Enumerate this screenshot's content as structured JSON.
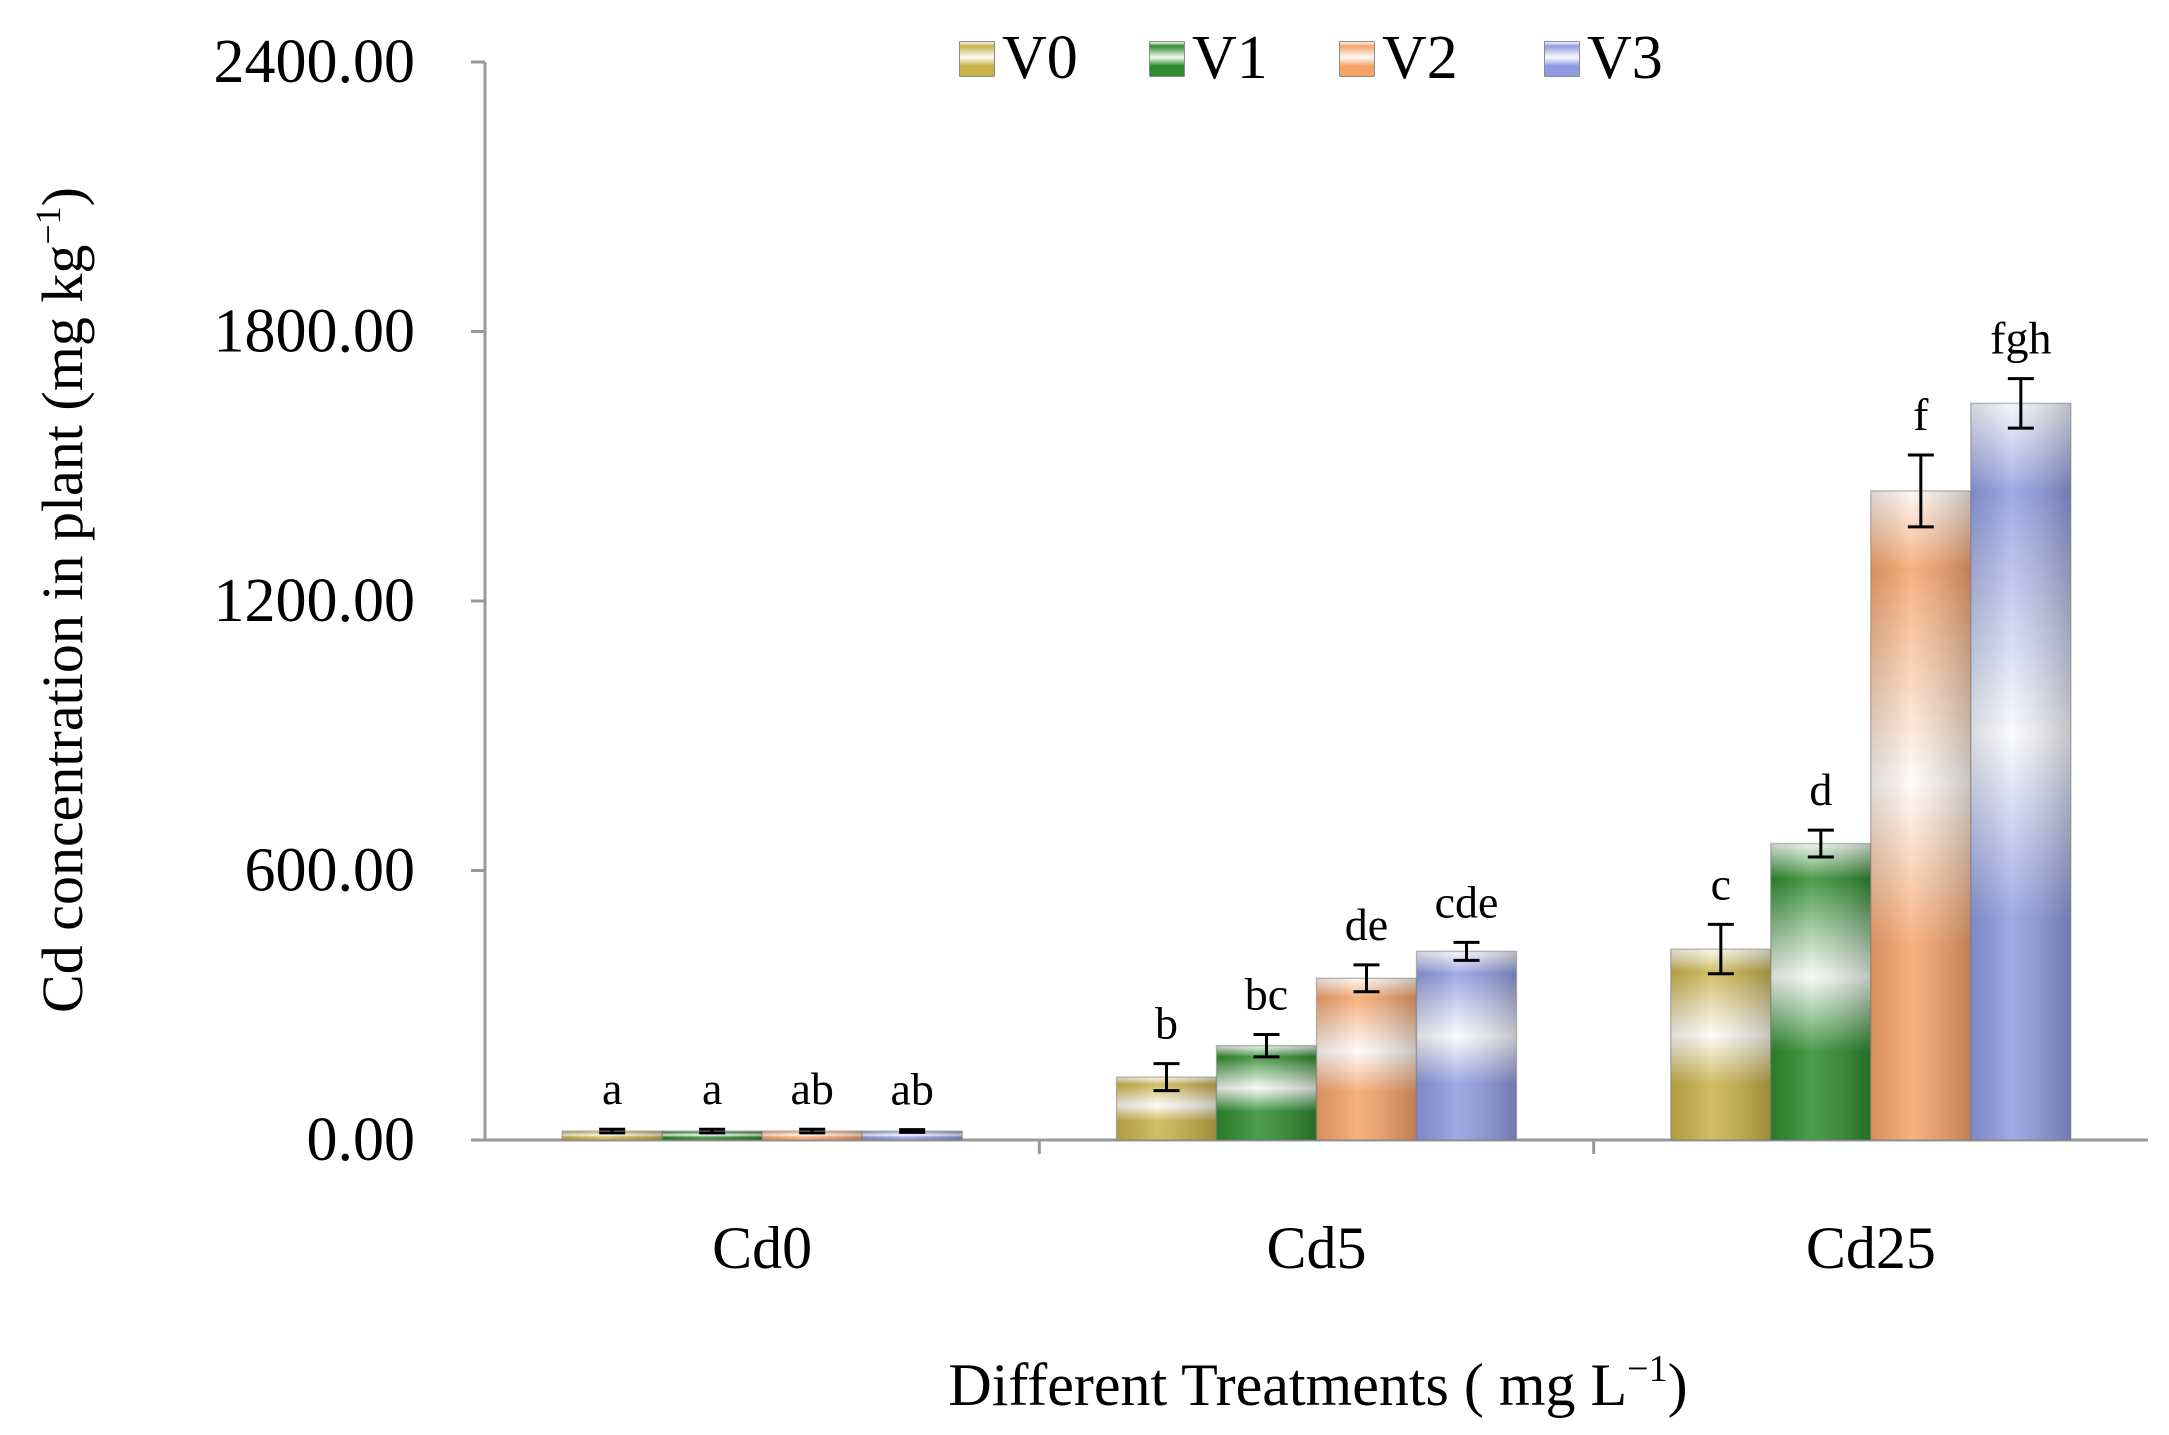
{
  "chart_data": {
    "type": "bar",
    "title": "",
    "xlabel": "Different Treatments ( mg L",
    "xlabel_sup": "−1",
    "xlabel_end": ")",
    "ylabel": "Cd concentration in plant (mg kg",
    "ylabel_sup": "−1",
    "ylabel_end": ")",
    "ylim": [
      0,
      2400
    ],
    "yticks": [
      0,
      600,
      1200,
      1800,
      2400
    ],
    "ytick_labels": [
      "0.00",
      "600.00",
      "1200.00",
      "1800.00",
      "2400.00"
    ],
    "categories": [
      "Cd0",
      "Cd5",
      "Cd25"
    ],
    "legend_position": "top-center",
    "series": [
      {
        "name": "V0",
        "color": "#c9b24a",
        "values": [
          20,
          140,
          425
        ],
        "errors": [
          4,
          30,
          55
        ],
        "letters": [
          "a",
          "b",
          "c"
        ]
      },
      {
        "name": "V1",
        "color": "#2e8b2e",
        "values": [
          20,
          210,
          660
        ],
        "errors": [
          4,
          25,
          30
        ],
        "letters": [
          "a",
          "bc",
          "d"
        ]
      },
      {
        "name": "V2",
        "color": "#f5a36a",
        "values": [
          20,
          360,
          1445
        ],
        "errors": [
          4,
          30,
          80
        ],
        "letters": [
          "ab",
          "de",
          "f"
        ]
      },
      {
        "name": "V3",
        "color": "#8f9be0",
        "values": [
          20,
          420,
          1640
        ],
        "errors": [
          3,
          20,
          55
        ],
        "letters": [
          "ab",
          "cde",
          "fgh"
        ]
      }
    ]
  }
}
